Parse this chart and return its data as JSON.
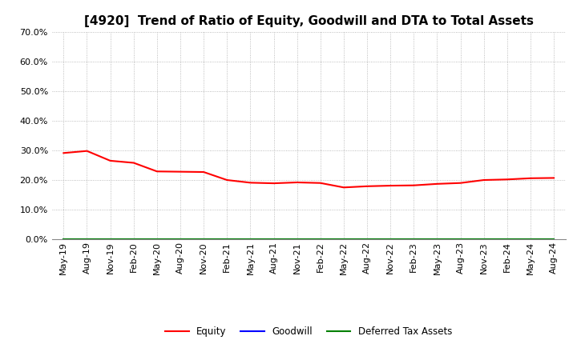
{
  "title": "[4920]  Trend of Ratio of Equity, Goodwill and DTA to Total Assets",
  "x_labels": [
    "May-19",
    "Aug-19",
    "Nov-19",
    "Feb-20",
    "May-20",
    "Aug-20",
    "Nov-20",
    "Feb-21",
    "May-21",
    "Aug-21",
    "Nov-21",
    "Feb-22",
    "May-22",
    "Aug-22",
    "Nov-22",
    "Feb-23",
    "May-23",
    "Aug-23",
    "Nov-23",
    "Feb-24",
    "May-24",
    "Aug-24"
  ],
  "equity": [
    0.291,
    0.298,
    0.265,
    0.258,
    0.229,
    0.228,
    0.227,
    0.2,
    0.191,
    0.189,
    0.192,
    0.19,
    0.175,
    0.179,
    0.181,
    0.182,
    0.187,
    0.19,
    0.2,
    0.202,
    0.206,
    0.207
  ],
  "goodwill": [
    0.0,
    0.0,
    0.0,
    0.0,
    0.0,
    0.0,
    0.0,
    0.0,
    0.0,
    0.0,
    0.0,
    0.0,
    0.0,
    0.0,
    0.0,
    0.0,
    0.0,
    0.0,
    0.0,
    0.0,
    0.0,
    0.0
  ],
  "dta": [
    0.0,
    0.0,
    0.0,
    0.0,
    0.0,
    0.0,
    0.0,
    0.0,
    0.0,
    0.0,
    0.0,
    0.0,
    0.0,
    0.0,
    0.0,
    0.0,
    0.0,
    0.0,
    0.0,
    0.0,
    0.0,
    0.0
  ],
  "equity_color": "#ff0000",
  "goodwill_color": "#0000ff",
  "dta_color": "#008000",
  "ylim": [
    0.0,
    0.7
  ],
  "yticks": [
    0.0,
    0.1,
    0.2,
    0.3,
    0.4,
    0.5,
    0.6,
    0.7
  ],
  "background_color": "#ffffff",
  "plot_bg_color": "#ffffff",
  "grid_color": "#aaaaaa",
  "title_fontsize": 11,
  "tick_fontsize": 8,
  "legend_labels": [
    "Equity",
    "Goodwill",
    "Deferred Tax Assets"
  ],
  "legend_colors": [
    "#ff0000",
    "#0000ff",
    "#008000"
  ]
}
